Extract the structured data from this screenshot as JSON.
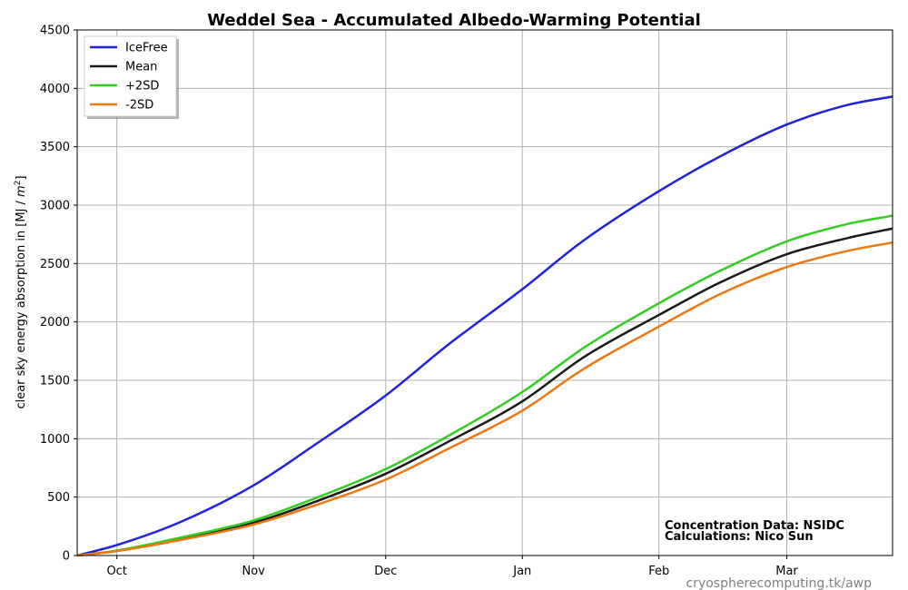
{
  "chart_data": {
    "type": "line",
    "title": "Weddel Sea - Accumulated Albedo-Warming Potential",
    "ylabel_prefix": "clear sky energy absorption in  [MJ / ",
    "ylabel_unit": "m",
    "ylabel_exp": "2",
    "ylabel_suffix": "]",
    "xlabel": "",
    "x_domain": [
      "2023-09-22",
      "2024-03-25"
    ],
    "ylim": [
      0,
      4500
    ],
    "yticks": [
      0,
      500,
      1000,
      1500,
      2000,
      2500,
      3000,
      3500,
      4000,
      4500
    ],
    "xticks": [
      {
        "label": "Oct",
        "date": "2023-10-01"
      },
      {
        "label": "Nov",
        "date": "2023-11-01"
      },
      {
        "label": "Dec",
        "date": "2023-12-01"
      },
      {
        "label": "Jan",
        "date": "2024-01-01"
      },
      {
        "label": "Feb",
        "date": "2024-02-01"
      },
      {
        "label": "Mar",
        "date": "2024-03-01"
      }
    ],
    "grid": true,
    "legend_position": "top-left",
    "x": [
      "2023-09-22",
      "2023-10-01",
      "2023-10-15",
      "2023-11-01",
      "2023-11-15",
      "2023-12-01",
      "2023-12-15",
      "2024-01-01",
      "2024-01-15",
      "2024-02-01",
      "2024-02-15",
      "2024-03-01",
      "2024-03-15",
      "2024-03-25"
    ],
    "series": [
      {
        "name": "IceFree",
        "color": "#2222dd",
        "values": [
          0,
          90,
          280,
          600,
          950,
          1370,
          1800,
          2280,
          2700,
          3120,
          3420,
          3690,
          3860,
          3930
        ]
      },
      {
        "name": "Mean",
        "color": "#1a1a1a",
        "values": [
          0,
          40,
          140,
          280,
          460,
          700,
          970,
          1320,
          1700,
          2060,
          2340,
          2580,
          2720,
          2800
        ]
      },
      {
        "name": "+2SD",
        "color": "#33cc22",
        "values": [
          0,
          42,
          150,
          300,
          490,
          740,
          1020,
          1400,
          1780,
          2160,
          2440,
          2690,
          2840,
          2910
        ]
      },
      {
        "name": "-2SD",
        "color": "#ee7711",
        "values": [
          0,
          38,
          130,
          265,
          430,
          650,
          910,
          1240,
          1600,
          1960,
          2240,
          2470,
          2610,
          2680
        ]
      }
    ]
  },
  "annotations": {
    "line1": "Concentration Data: NSIDC",
    "line2": "Calculations: Nico Sun"
  },
  "watermark": "cryospherecomputing.tk/awp"
}
